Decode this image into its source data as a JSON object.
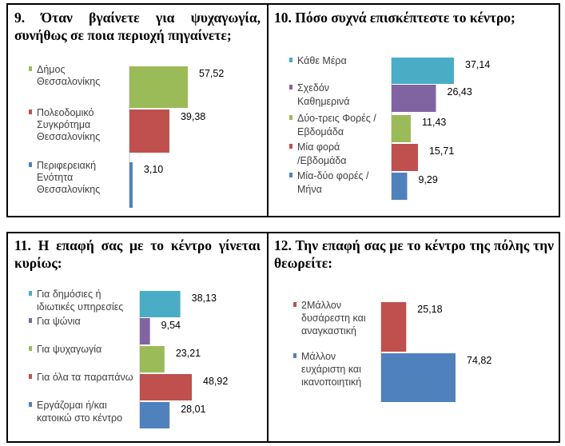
{
  "chart_data": [
    {
      "type": "bar",
      "orientation": "horizontal",
      "title": "9. Όταν βγαίνετε για ψυχαγωγία, συνήθως σε ποια περιοχή πηγαίνετε;",
      "categories": [
        [
          "Δήμος",
          "Θεσσαλονίκης"
        ],
        [
          "Πολεοδομικό",
          "Συγκρότημα",
          "Θεσσαλονίκης"
        ],
        [
          "Περιφερειακή",
          "Ενότητα",
          "Θεσσαλονίκης"
        ]
      ],
      "values": [
        57.52,
        39.38,
        3.1
      ],
      "value_labels": [
        "57,52",
        "39,38",
        "3,10"
      ],
      "colors": [
        "#9bbb59",
        "#c0504d",
        "#4f81bd"
      ]
    },
    {
      "type": "bar",
      "orientation": "horizontal",
      "title": "10. Πόσο συχνά επισκέπτεστε το κέντρο;",
      "categories": [
        [
          "Κάθε Μέρα"
        ],
        [
          "Σχεδόν",
          "Καθημερινά"
        ],
        [
          "Δύο-τρεις Φορές /",
          "Εβδομάδα"
        ],
        [
          "Μία φορά",
          "/Εβδομάδα"
        ],
        [
          "Μία-δύο φορές /",
          "Μήνα"
        ]
      ],
      "values": [
        37.14,
        26.43,
        11.43,
        15.71,
        9.29
      ],
      "value_labels": [
        "37,14",
        "26,43",
        "11,43",
        "15,71",
        "9,29"
      ],
      "colors": [
        "#4bacc6",
        "#8064a2",
        "#9bbb59",
        "#c0504d",
        "#4f81bd"
      ]
    },
    {
      "type": "bar",
      "orientation": "horizontal",
      "title": "11. Η επαφή σας με το κέντρο γίνεται κυρίως:",
      "categories": [
        [
          "Για δημόσιες ή",
          "ιδιωτικές υπηρεσίες"
        ],
        [
          "Για ψώνια"
        ],
        [
          "Για ψυχαγωγία"
        ],
        [
          "Για όλα τα παραπάνω"
        ],
        [
          "Εργάζομαι ή/και",
          "κατοικώ στο κέντρο"
        ]
      ],
      "values": [
        38.13,
        9.54,
        23.21,
        48.92,
        28.01
      ],
      "value_labels": [
        "38,13",
        "9,54",
        "23,21",
        "48,92",
        "28,01"
      ],
      "colors": [
        "#4bacc6",
        "#8064a2",
        "#9bbb59",
        "#c0504d",
        "#4f81bd"
      ]
    },
    {
      "type": "bar",
      "orientation": "horizontal",
      "title": "12. Την επαφή σας με το κέντρο της πόλης την θεωρείτε:",
      "categories": [
        [
          "2Μάλλον",
          "δυσάρεστη και",
          "αναγκαστική"
        ],
        [
          "Μάλλον",
          "ευχάριστη και",
          "ικανοποιητική"
        ]
      ],
      "values": [
        25.18,
        74.82
      ],
      "value_labels": [
        "25,18",
        "74,82"
      ],
      "colors": [
        "#c0504d",
        "#4f81bd"
      ]
    }
  ]
}
